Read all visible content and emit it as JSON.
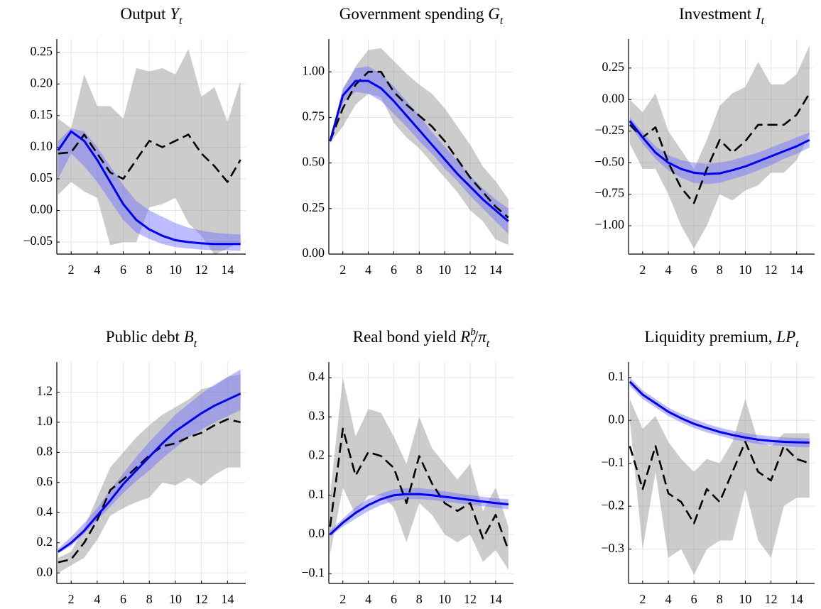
{
  "chart_data": [
    {
      "type": "line",
      "title": [
        {
          "text": "Output "
        },
        {
          "text": "Y",
          "style": "italic"
        },
        {
          "text": "t",
          "style": "sub"
        }
      ],
      "x": [
        1,
        2,
        3,
        4,
        5,
        6,
        7,
        8,
        9,
        10,
        11,
        12,
        13,
        14,
        15
      ],
      "xlim": [
        0.9,
        15.4
      ],
      "xticks": [
        2,
        4,
        6,
        8,
        10,
        12,
        14
      ],
      "ylim": [
        -0.069,
        0.271
      ],
      "yticks": [
        {
          "value": -0.05,
          "label": "−0.05"
        },
        {
          "value": 0,
          "label": "0.00"
        },
        0.05,
        {
          "value": 0.1,
          "label": "0.10"
        },
        0.15,
        {
          "value": 0.2,
          "label": "0.20"
        },
        0.25
      ],
      "grid": true,
      "series": [
        {
          "type": "band",
          "color": "#808080",
          "opacity": 0.4,
          "lower": [
            0.025,
            0.045,
            0.03,
            0.02,
            -0.055,
            -0.05,
            -0.05,
            0.005,
            0.01,
            0.02,
            -0.02,
            -0.04,
            -0.07,
            -0.06,
            -0.05
          ],
          "upper": [
            0.145,
            0.13,
            0.215,
            0.165,
            0.165,
            0.145,
            0.225,
            0.22,
            0.225,
            0.215,
            0.255,
            0.18,
            0.195,
            0.14,
            0.205
          ]
        },
        {
          "type": "band",
          "color": "#6a6aff",
          "opacity": 0.45,
          "lower": [
            0.05,
            0.09,
            0.07,
            0.045,
            0.015,
            -0.015,
            -0.035,
            -0.045,
            -0.053,
            -0.058,
            -0.06,
            -0.062,
            -0.063,
            -0.063,
            -0.064
          ],
          "upper": [
            0.11,
            0.13,
            0.125,
            0.1,
            0.07,
            0.04,
            0.015,
            0,
            -0.01,
            -0.02,
            -0.027,
            -0.032,
            -0.035,
            -0.037,
            -0.038
          ]
        },
        {
          "color": "#000000",
          "dash": true,
          "values": [
            0.09,
            0.092,
            0.12,
            0.09,
            0.06,
            0.05,
            0.08,
            0.11,
            0.1,
            0.11,
            0.12,
            0.09,
            0.07,
            0.045,
            0.08
          ]
        },
        {
          "color": "#0000ee",
          "values": [
            0.095,
            0.125,
            0.11,
            0.08,
            0.045,
            0.01,
            -0.015,
            -0.03,
            -0.04,
            -0.047,
            -0.05,
            -0.052,
            -0.053,
            -0.053,
            -0.053
          ]
        }
      ]
    },
    {
      "type": "line",
      "title": [
        {
          "text": "Government spending "
        },
        {
          "text": "G",
          "style": "italic"
        },
        {
          "text": "t",
          "style": "sub"
        }
      ],
      "x": [
        1,
        2,
        3,
        4,
        5,
        6,
        7,
        8,
        9,
        10,
        11,
        12,
        13,
        14,
        15
      ],
      "xlim": [
        0.9,
        15.4
      ],
      "xticks": [
        2,
        4,
        6,
        8,
        10,
        12,
        14
      ],
      "ylim": [
        0.0,
        1.18
      ],
      "yticks": [
        {
          "value": 0,
          "label": "0.00"
        },
        0.25,
        {
          "value": 0.5,
          "label": "0.50"
        },
        0.75,
        {
          "value": 1,
          "label": "1.00"
        }
      ],
      "grid": true,
      "series": [
        {
          "type": "band",
          "color": "#808080",
          "opacity": 0.4,
          "lower": [
            0.61,
            0.7,
            0.82,
            0.88,
            0.86,
            0.72,
            0.64,
            0.58,
            0.5,
            0.42,
            0.34,
            0.24,
            0.18,
            0.08,
            0.05
          ],
          "upper": [
            0.63,
            0.9,
            1.03,
            1.12,
            1.13,
            1.06,
            0.99,
            0.93,
            0.88,
            0.8,
            0.7,
            0.6,
            0.48,
            0.4,
            0.3
          ]
        },
        {
          "type": "band",
          "color": "#6a6aff",
          "opacity": 0.45,
          "lower": [
            0.61,
            0.83,
            0.89,
            0.88,
            0.84,
            0.77,
            0.7,
            0.62,
            0.55,
            0.47,
            0.4,
            0.32,
            0.25,
            0.18,
            0.11
          ],
          "upper": [
            0.63,
            0.91,
            1.02,
            1.03,
            0.99,
            0.92,
            0.84,
            0.76,
            0.67,
            0.59,
            0.51,
            0.43,
            0.36,
            0.3,
            0.25
          ]
        },
        {
          "color": "#000000",
          "dash": true,
          "values": [
            0.62,
            0.8,
            0.93,
            1.0,
            1.0,
            0.89,
            0.82,
            0.76,
            0.7,
            0.62,
            0.52,
            0.42,
            0.34,
            0.26,
            0.2
          ]
        },
        {
          "color": "#0000ee",
          "values": [
            0.62,
            0.87,
            0.95,
            0.95,
            0.91,
            0.84,
            0.76,
            0.68,
            0.6,
            0.52,
            0.44,
            0.37,
            0.3,
            0.24,
            0.18
          ]
        }
      ]
    },
    {
      "type": "line",
      "title": [
        {
          "text": "Investment "
        },
        {
          "text": "I",
          "style": "italic"
        },
        {
          "text": "t",
          "style": "sub"
        }
      ],
      "x": [
        1,
        2,
        3,
        4,
        5,
        6,
        7,
        8,
        9,
        10,
        11,
        12,
        13,
        14,
        15
      ],
      "xlim": [
        0.9,
        15.4
      ],
      "xticks": [
        2,
        4,
        6,
        8,
        10,
        12,
        14
      ],
      "ylim": [
        -1.225,
        0.48
      ],
      "yticks": [
        {
          "value": -1,
          "label": "−1.00"
        },
        {
          "value": -0.75,
          "label": "−0.75"
        },
        {
          "value": -0.5,
          "label": "−0.50"
        },
        {
          "value": -0.25,
          "label": "−0.25"
        },
        {
          "value": 0,
          "label": "0.00"
        },
        0.25
      ],
      "grid": true,
      "series": [
        {
          "type": "band",
          "color": "#808080",
          "opacity": 0.4,
          "lower": [
            -0.35,
            -0.55,
            -0.55,
            -0.75,
            -1.0,
            -1.18,
            -1.0,
            -0.75,
            -0.8,
            -0.72,
            -0.68,
            -0.58,
            -0.58,
            -0.48,
            -0.28
          ],
          "upper": [
            0.0,
            -0.1,
            0.05,
            -0.25,
            -0.4,
            -0.55,
            -0.32,
            -0.05,
            0.05,
            0.1,
            0.3,
            0.12,
            0.12,
            0.2,
            0.43
          ]
        },
        {
          "type": "band",
          "color": "#6a6aff",
          "opacity": 0.45,
          "lower": [
            -0.2,
            -0.35,
            -0.47,
            -0.56,
            -0.62,
            -0.66,
            -0.67,
            -0.66,
            -0.63,
            -0.6,
            -0.56,
            -0.52,
            -0.47,
            -0.43,
            -0.38
          ],
          "upper": [
            -0.14,
            -0.26,
            -0.37,
            -0.44,
            -0.48,
            -0.5,
            -0.51,
            -0.5,
            -0.48,
            -0.45,
            -0.42,
            -0.38,
            -0.34,
            -0.3,
            -0.26
          ]
        },
        {
          "color": "#000000",
          "dash": true,
          "values": [
            -0.2,
            -0.3,
            -0.22,
            -0.5,
            -0.7,
            -0.82,
            -0.55,
            -0.32,
            -0.42,
            -0.33,
            -0.2,
            -0.2,
            -0.2,
            -0.12,
            0.05
          ]
        },
        {
          "color": "#0000ee",
          "values": [
            -0.17,
            -0.3,
            -0.42,
            -0.5,
            -0.55,
            -0.58,
            -0.59,
            -0.585,
            -0.56,
            -0.53,
            -0.49,
            -0.45,
            -0.41,
            -0.37,
            -0.32
          ]
        }
      ]
    },
    {
      "type": "line",
      "title": [
        {
          "text": "Public debt "
        },
        {
          "text": "B",
          "style": "italic"
        },
        {
          "text": "t",
          "style": "sub"
        }
      ],
      "x": [
        1,
        2,
        3,
        4,
        5,
        6,
        7,
        8,
        9,
        10,
        11,
        12,
        13,
        14,
        15
      ],
      "xlim": [
        0.9,
        15.4
      ],
      "xticks": [
        2,
        4,
        6,
        8,
        10,
        12,
        14
      ],
      "ylim": [
        -0.07,
        1.4
      ],
      "yticks": [
        {
          "value": 0,
          "label": "0.0"
        },
        0.2,
        0.4,
        0.6,
        0.8,
        {
          "value": 1,
          "label": "1.0"
        },
        1.2
      ],
      "grid": true,
      "series": [
        {
          "type": "band",
          "color": "#808080",
          "opacity": 0.4,
          "lower": [
            0.0,
            0.05,
            0.1,
            0.22,
            0.38,
            0.43,
            0.47,
            0.5,
            0.6,
            0.58,
            0.63,
            0.58,
            0.65,
            0.7,
            0.7
          ],
          "upper": [
            0.1,
            0.14,
            0.3,
            0.5,
            0.7,
            0.8,
            0.9,
            0.98,
            1.05,
            1.1,
            1.15,
            1.22,
            1.24,
            1.3,
            1.32
          ]
        },
        {
          "type": "band",
          "color": "#6a6aff",
          "opacity": 0.45,
          "lower": [
            0.13,
            0.18,
            0.26,
            0.35,
            0.44,
            0.53,
            0.61,
            0.68,
            0.76,
            0.83,
            0.9,
            0.95,
            1.0,
            1.04,
            1.08
          ],
          "upper": [
            0.16,
            0.24,
            0.33,
            0.43,
            0.55,
            0.66,
            0.77,
            0.87,
            0.96,
            1.05,
            1.12,
            1.19,
            1.25,
            1.3,
            1.35
          ]
        },
        {
          "color": "#000000",
          "dash": true,
          "values": [
            0.07,
            0.09,
            0.2,
            0.35,
            0.55,
            0.62,
            0.7,
            0.78,
            0.84,
            0.86,
            0.9,
            0.93,
            0.98,
            1.02,
            1.0
          ]
        },
        {
          "color": "#0000ee",
          "values": [
            0.14,
            0.2,
            0.28,
            0.38,
            0.48,
            0.59,
            0.68,
            0.77,
            0.86,
            0.94,
            1.0,
            1.06,
            1.11,
            1.15,
            1.19
          ]
        }
      ]
    },
    {
      "type": "line",
      "title": [
        {
          "text": "Real bond yield "
        },
        {
          "text": "R",
          "style": "italic"
        },
        {
          "text": "b",
          "style": "sup"
        },
        {
          "text": "t",
          "style": "subunder"
        },
        {
          "text": "/"
        },
        {
          "text": "π",
          "style": "italic"
        },
        {
          "text": "t",
          "style": "sub"
        }
      ],
      "x": [
        1,
        2,
        3,
        4,
        5,
        6,
        7,
        8,
        9,
        10,
        11,
        12,
        13,
        14,
        15
      ],
      "xlim": [
        0.9,
        15.4
      ],
      "xticks": [
        2,
        4,
        6,
        8,
        10,
        12,
        14
      ],
      "ylim": [
        -0.125,
        0.44
      ],
      "yticks": [
        {
          "value": -0.1,
          "label": "−0.1"
        },
        {
          "value": 0,
          "label": "0.0"
        },
        0.1,
        0.2,
        0.3,
        0.4
      ],
      "grid": true,
      "series": [
        {
          "type": "band",
          "color": "#808080",
          "opacity": 0.4,
          "lower": [
            -0.05,
            0.12,
            0.05,
            0.1,
            0.1,
            0.07,
            -0.02,
            0.08,
            0.05,
            0.0,
            -0.02,
            0.0,
            -0.07,
            -0.04,
            -0.09
          ],
          "upper": [
            0.1,
            0.4,
            0.25,
            0.32,
            0.31,
            0.25,
            0.18,
            0.3,
            0.22,
            0.18,
            0.14,
            0.18,
            0.06,
            0.12,
            0.02
          ]
        },
        {
          "type": "band",
          "color": "#6a6aff",
          "opacity": 0.45,
          "lower": [
            -0.005,
            0.02,
            0.04,
            0.06,
            0.075,
            0.085,
            0.09,
            0.09,
            0.088,
            0.084,
            0.08,
            0.076,
            0.072,
            0.068,
            0.064
          ],
          "upper": [
            0.01,
            0.04,
            0.07,
            0.09,
            0.105,
            0.115,
            0.118,
            0.118,
            0.115,
            0.11,
            0.105,
            0.1,
            0.096,
            0.092,
            0.09
          ]
        },
        {
          "color": "#000000",
          "dash": true,
          "values": [
            0.02,
            0.27,
            0.15,
            0.21,
            0.2,
            0.17,
            0.08,
            0.2,
            0.13,
            0.08,
            0.06,
            0.08,
            -0.01,
            0.05,
            -0.04
          ]
        },
        {
          "color": "#0000ee",
          "values": [
            0.0,
            0.03,
            0.055,
            0.075,
            0.09,
            0.1,
            0.103,
            0.103,
            0.1,
            0.096,
            0.092,
            0.088,
            0.084,
            0.08,
            0.077
          ]
        }
      ]
    },
    {
      "type": "line",
      "title": [
        {
          "text": "Liquidity premium, "
        },
        {
          "text": "LP",
          "style": "italic"
        },
        {
          "text": "t",
          "style": "sub"
        }
      ],
      "x": [
        1,
        2,
        3,
        4,
        5,
        6,
        7,
        8,
        9,
        10,
        11,
        12,
        13,
        14,
        15
      ],
      "xlim": [
        0.9,
        15.4
      ],
      "xticks": [
        2,
        4,
        6,
        8,
        10,
        12,
        14
      ],
      "ylim": [
        -0.38,
        0.136
      ],
      "yticks": [
        {
          "value": -0.3,
          "label": "−0.3"
        },
        {
          "value": -0.2,
          "label": "−0.2"
        },
        {
          "value": -0.1,
          "label": "−0.1"
        },
        {
          "value": 0,
          "label": "0.0"
        },
        0.1
      ],
      "grid": true,
      "series": [
        {
          "type": "band",
          "color": "#808080",
          "opacity": 0.4,
          "lower": [
            0.0,
            -0.3,
            -0.12,
            -0.32,
            -0.3,
            -0.36,
            -0.3,
            -0.28,
            -0.28,
            -0.16,
            -0.28,
            -0.32,
            -0.2,
            -0.18,
            -0.18
          ],
          "upper": [
            0.05,
            -0.02,
            0.01,
            -0.05,
            -0.09,
            -0.12,
            -0.09,
            -0.1,
            -0.05,
            0.05,
            -0.05,
            -0.06,
            -0.03,
            -0.03,
            -0.03
          ]
        },
        {
          "type": "band",
          "color": "#6a6aff",
          "opacity": 0.45,
          "lower": [
            0.08,
            0.05,
            0.03,
            0.01,
            -0.005,
            -0.018,
            -0.028,
            -0.036,
            -0.044,
            -0.05,
            -0.055,
            -0.058,
            -0.06,
            -0.062,
            -0.063
          ],
          "upper": [
            0.1,
            0.07,
            0.05,
            0.03,
            0.015,
            0.003,
            -0.008,
            -0.017,
            -0.024,
            -0.03,
            -0.034,
            -0.037,
            -0.04,
            -0.041,
            -0.042
          ]
        },
        {
          "color": "#000000",
          "dash": true,
          "values": [
            -0.06,
            -0.16,
            -0.06,
            -0.17,
            -0.19,
            -0.24,
            -0.16,
            -0.19,
            -0.12,
            -0.05,
            -0.12,
            -0.14,
            -0.06,
            -0.09,
            -0.1
          ]
        },
        {
          "color": "#0000ee",
          "values": [
            0.09,
            0.06,
            0.04,
            0.02,
            0.005,
            -0.008,
            -0.018,
            -0.027,
            -0.034,
            -0.04,
            -0.045,
            -0.048,
            -0.05,
            -0.051,
            -0.052
          ]
        }
      ]
    }
  ]
}
